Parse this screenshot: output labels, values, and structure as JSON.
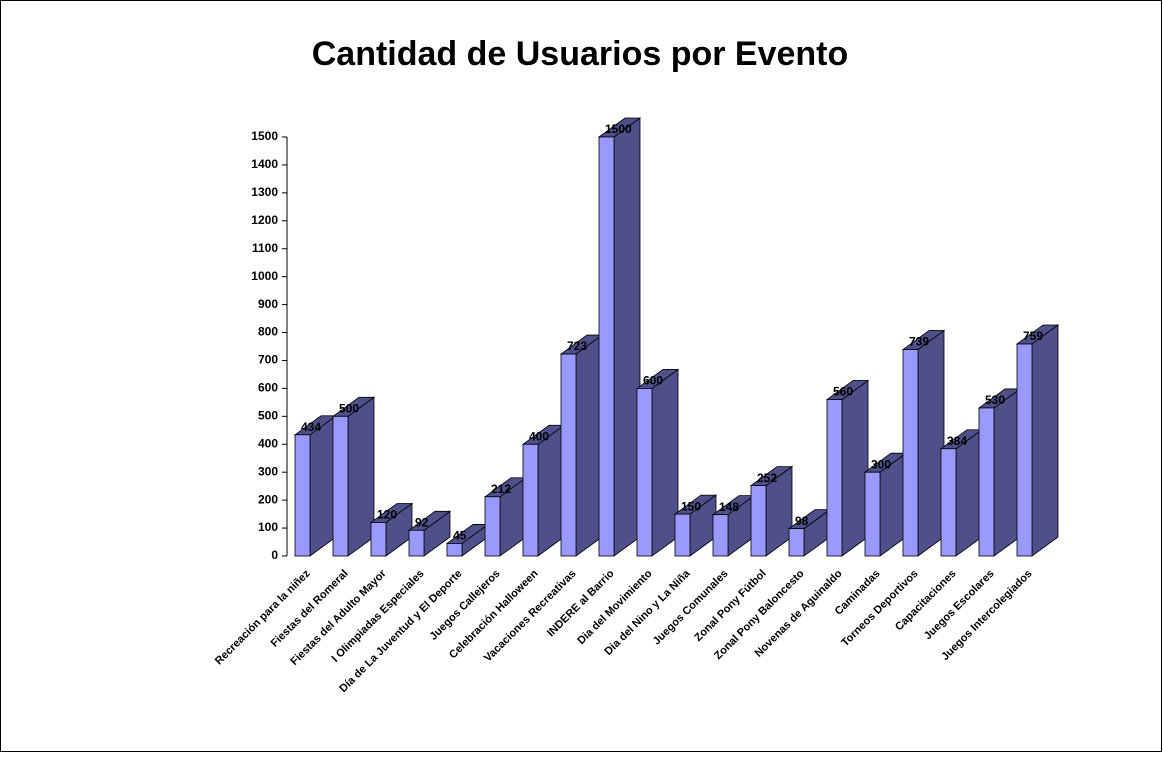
{
  "chart_data": {
    "type": "bar3d",
    "title": "Cantidad de Usuarios por Evento",
    "categories": [
      "Recreación para la niñez",
      "Fiestas del Romeral",
      "Fiestas del Adulto Mayor",
      "I Olimpiadas Especiales",
      "Día de La Juventud y El Deporte",
      "Juegos Callejeros",
      "Celebración Halloween",
      "Vacaciones Recreativas",
      "INDERE al Barrio",
      "Dia del Movimiento",
      "Dia del Nino y La Niña",
      "Juegos Comunales",
      "Zonal Pony Fútbol",
      "Zonal Pony Baloncesto",
      "Novenas de Aguinaldo",
      "Caminadas",
      "Torneos Deportivos",
      "Capacitaciones",
      "Juegos Escolares",
      "Juegos Intercolegiados"
    ],
    "values": [
      434,
      500,
      120,
      92,
      45,
      212,
      400,
      723,
      1500,
      600,
      150,
      148,
      252,
      98,
      560,
      300,
      739,
      384,
      530,
      759
    ],
    "color": "#9999ff",
    "side_color": "#4f4f8a",
    "ylim": [
      0,
      1500
    ],
    "yticks": [
      0,
      100,
      200,
      300,
      400,
      500,
      600,
      700,
      800,
      900,
      1000,
      1100,
      1200,
      1300,
      1400,
      1500
    ]
  }
}
